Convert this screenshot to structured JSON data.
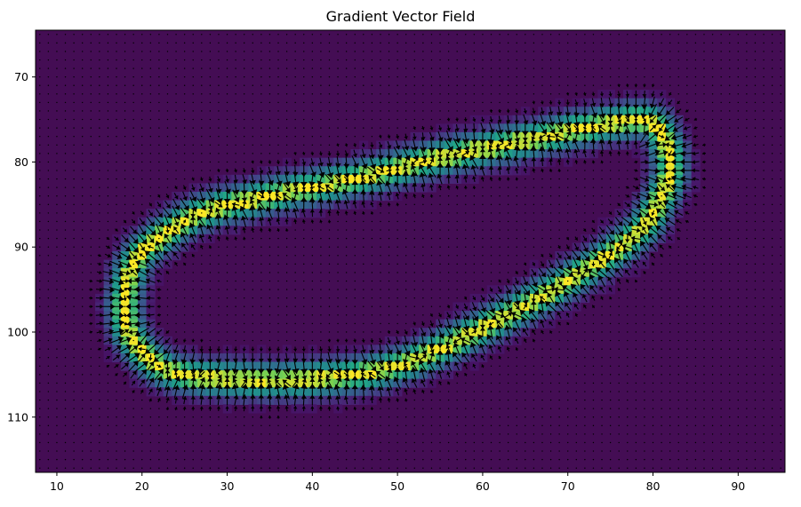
{
  "chart_data": {
    "type": "heatmap",
    "title": "Gradient Vector Field",
    "xlabel": "",
    "ylabel": "",
    "xlim": [
      7.5,
      95.5
    ],
    "ylim": [
      116.5,
      64.5
    ],
    "y_inverted": true,
    "x_ticks": [
      10,
      20,
      30,
      40,
      50,
      60,
      70,
      80,
      90
    ],
    "y_ticks": [
      70,
      80,
      90,
      100,
      110
    ],
    "grid": false,
    "colormap": "viridis",
    "background_color": "#440d54",
    "overlay": "quiver arrows (black) showing gradient direction, strongest near ridge",
    "ridge_points": [
      [
        18,
        97
      ],
      [
        19,
        92
      ],
      [
        22,
        89
      ],
      [
        27,
        86
      ],
      [
        35,
        84
      ],
      [
        45,
        82
      ],
      [
        55,
        79.5
      ],
      [
        65,
        77.5
      ],
      [
        75,
        75.5
      ],
      [
        80,
        75.5
      ],
      [
        82,
        80
      ],
      [
        81,
        84
      ],
      [
        78,
        88.5
      ],
      [
        70,
        94
      ],
      [
        60,
        99.5
      ],
      [
        50,
        104
      ],
      [
        40,
        105.5
      ],
      [
        30,
        105.5
      ],
      [
        23,
        104.5
      ],
      [
        19,
        101
      ]
    ]
  }
}
